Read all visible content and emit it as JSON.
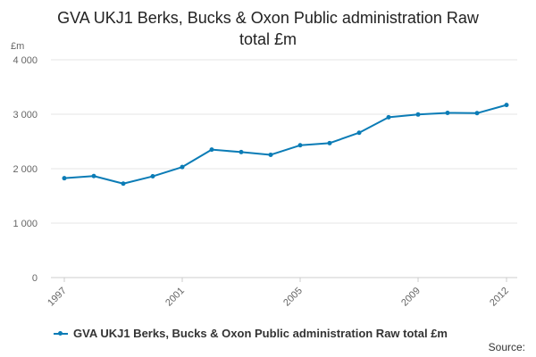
{
  "chart_data": {
    "type": "line",
    "title_lines": [
      "GVA UKJ1 Berks, Bucks & Oxon Public administration Raw",
      "total £m"
    ],
    "ylabel": "£m",
    "xlabel": "",
    "x": [
      1997,
      1998,
      1999,
      2000,
      2001,
      2002,
      2003,
      2004,
      2005,
      2006,
      2007,
      2008,
      2009,
      2010,
      2011,
      2012
    ],
    "x_tick_labels": [
      "1997",
      "2001",
      "2005",
      "2009",
      "2012"
    ],
    "x_tick_values": [
      1997,
      2001,
      2005,
      2009,
      2012
    ],
    "y_ticks": [
      0,
      1000,
      2000,
      3000,
      4000
    ],
    "y_tick_labels": [
      "0",
      "1 000",
      "2 000",
      "3 000",
      "4 000"
    ],
    "ylim": [
      0,
      4000
    ],
    "series": [
      {
        "name": "GVA UKJ1 Berks, Bucks & Oxon Public administration Raw total £m",
        "color": "#0b7cb6",
        "values": [
          1825,
          1865,
          1725,
          1860,
          2030,
          2350,
          2305,
          2255,
          2430,
          2470,
          2660,
          2945,
          2995,
          3025,
          3020,
          3170
        ]
      }
    ],
    "grid": "horizontal",
    "legend_position": "bottom"
  },
  "legend": {
    "label": "GVA UKJ1 Berks, Bucks & Oxon Public administration Raw total £m"
  },
  "footer": {
    "source": "Source:"
  }
}
